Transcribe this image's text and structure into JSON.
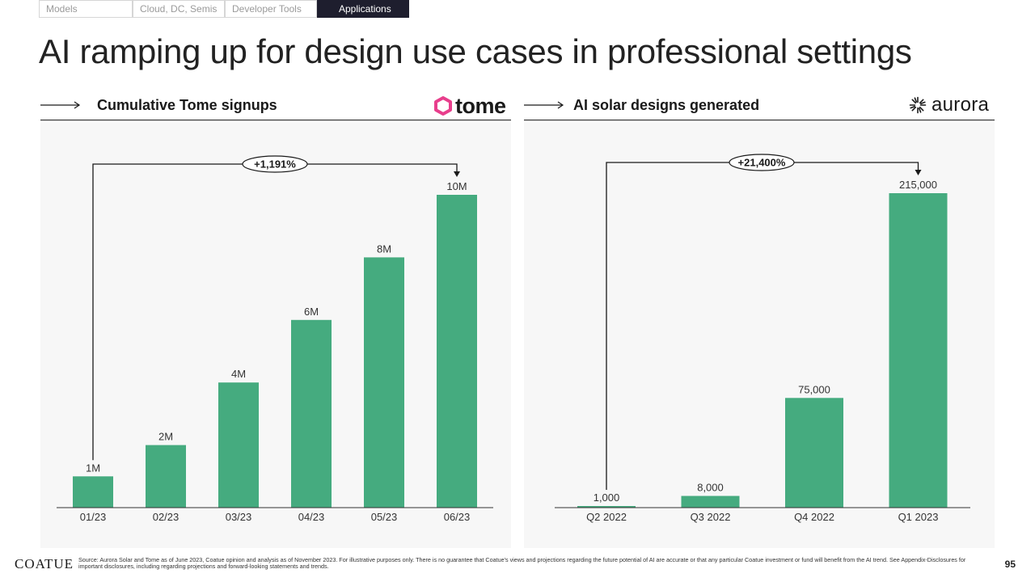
{
  "nav": {
    "tabs": [
      {
        "label": "Models"
      },
      {
        "label": "Cloud, DC, Semis"
      },
      {
        "label": "Developer Tools"
      },
      {
        "label": "Applications"
      }
    ],
    "active_tab": "Applications"
  },
  "page_title": "AI ramping up for design use cases in professional settings",
  "panels": [
    {
      "title": "Cumulative Tome signups",
      "logo_text": "tome",
      "logo_icon": "tome-hexagon-icon"
    },
    {
      "title": "AI solar designs generated",
      "logo_text": "aurora",
      "logo_icon": "aurora-sunburst-icon"
    }
  ],
  "colors": {
    "bar": "#45ab7f",
    "logo_pink": "#e83e8c",
    "tab_active": "#1e1e2e"
  },
  "chart_data": [
    {
      "type": "bar",
      "title": "Cumulative Tome signups",
      "categories": [
        "01/23",
        "02/23",
        "03/23",
        "04/23",
        "05/23",
        "06/23"
      ],
      "values": [
        1,
        2,
        4,
        6,
        8,
        10
      ],
      "value_labels": [
        "1M",
        "2M",
        "4M",
        "6M",
        "8M",
        "10M"
      ],
      "unit": "M",
      "ylim": [
        0,
        10
      ],
      "grid": false,
      "annotation": {
        "text": "+1,191%",
        "from": "01/23",
        "to": "06/23"
      }
    },
    {
      "type": "bar",
      "title": "AI solar designs generated",
      "categories": [
        "Q2 2022",
        "Q3 2022",
        "Q4 2022",
        "Q1 2023"
      ],
      "values": [
        1000,
        8000,
        75000,
        215000
      ],
      "value_labels": [
        "1,000",
        "8,000",
        "75,000",
        "215,000"
      ],
      "ylim": [
        0,
        215000
      ],
      "grid": false,
      "annotation": {
        "text": "+21,400%",
        "from": "Q2 2022",
        "to": "Q1 2023"
      }
    }
  ],
  "footer": {
    "brand": "COATUE",
    "source": "Source: Aurora Solar and Tome as of June 2023, Coatue opinion and analysis as of November 2023. For illustrative purposes only. There is no guarantee that Coatue's views and projections regarding the future potential of AI are accurate or that any particular Coatue investment or fund will benefit from the AI trend. See Appendix-Disclosures for important disclosures, including regarding projections and forward-looking statements and trends.",
    "page_number": "95"
  }
}
